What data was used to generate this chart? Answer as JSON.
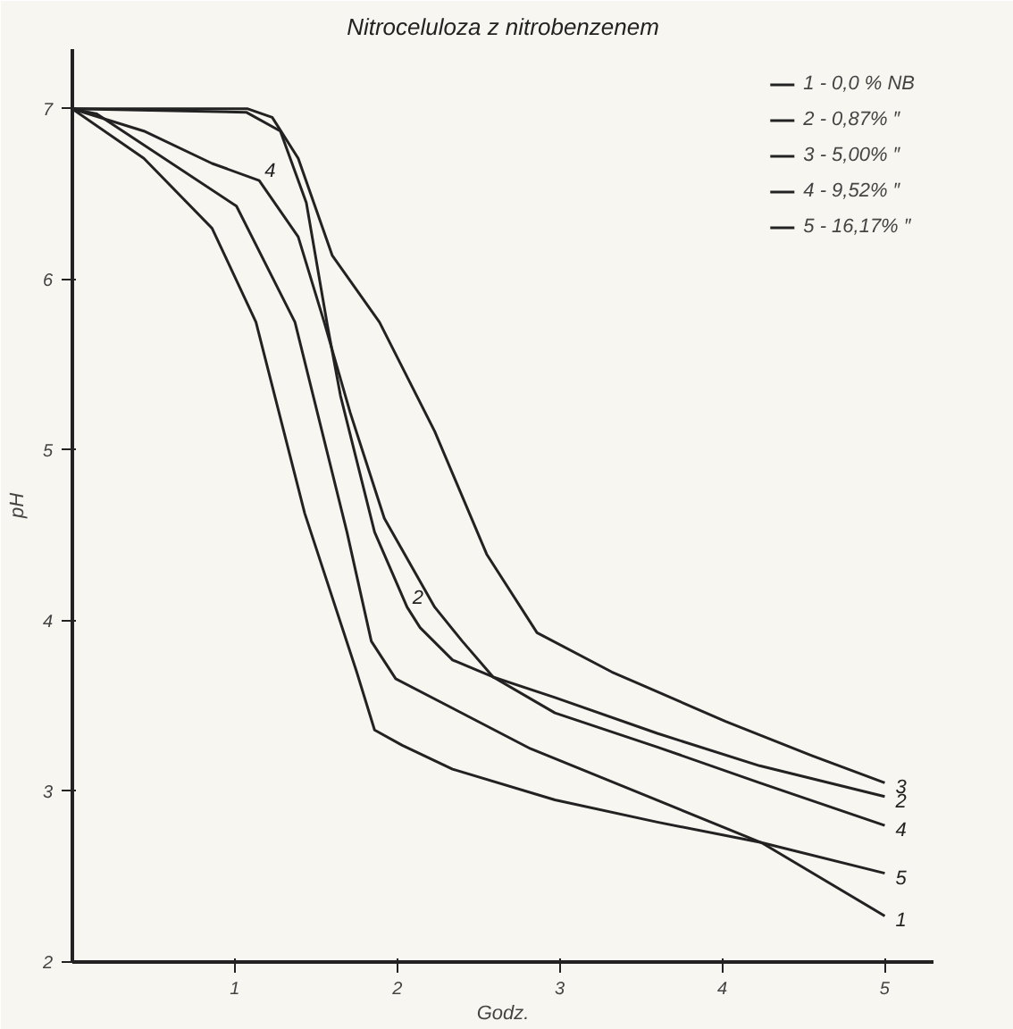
{
  "chart_data": {
    "type": "line",
    "title": "Nitroceluloza z nitrobenzenem",
    "xlabel": "Godz.",
    "ylabel": "pH",
    "xlim": [
      0,
      5.3
    ],
    "ylim": [
      2,
      7.35
    ],
    "xticks": [
      1,
      2,
      3,
      4,
      5
    ],
    "yticks": [
      2,
      3,
      4,
      5,
      6,
      7
    ],
    "grid": false,
    "legend": "top right",
    "marker": "none",
    "line_style": "solid",
    "series": [
      {
        "name": "1 - 0,0 % NB",
        "color": "#222222",
        "x": [
          0,
          0.15,
          1.01,
          1.37,
          1.69,
          1.84,
          1.99,
          2.82,
          3.57,
          4.24,
          5.0
        ],
        "values": [
          7.0,
          6.97,
          6.43,
          5.75,
          4.52,
          3.88,
          3.66,
          3.25,
          2.96,
          2.7,
          2.27
        ]
      },
      {
        "name": "2 - 0,87% ″",
        "color": "#222222",
        "x": [
          0,
          1.07,
          1.28,
          1.44,
          1.57,
          1.65,
          1.86,
          2.06,
          2.14,
          2.34,
          2.59,
          2.97,
          3.6,
          4.23,
          5.0
        ],
        "values": [
          7.0,
          6.98,
          6.87,
          6.45,
          5.73,
          5.32,
          4.52,
          4.08,
          3.96,
          3.77,
          3.67,
          3.55,
          3.34,
          3.15,
          2.97
        ]
      },
      {
        "name": "3 - 5,00% ″",
        "color": "#222222",
        "x": [
          0,
          1.08,
          1.23,
          1.39,
          1.6,
          1.89,
          2.23,
          2.55,
          2.86,
          3.32,
          4.02,
          4.55,
          5.0
        ],
        "values": [
          7.0,
          7.0,
          6.95,
          6.71,
          6.14,
          5.75,
          5.11,
          4.39,
          3.93,
          3.7,
          3.41,
          3.21,
          3.05
        ]
      },
      {
        "name": "4 - 9,52% ″",
        "color": "#222222",
        "x": [
          0,
          0.44,
          0.86,
          1.15,
          1.39,
          1.55,
          1.71,
          1.92,
          2.23,
          2.4,
          2.59,
          2.97,
          3.6,
          4.23,
          5.0
        ],
        "values": [
          7.0,
          6.87,
          6.68,
          6.58,
          6.25,
          5.75,
          5.22,
          4.6,
          4.08,
          3.88,
          3.67,
          3.46,
          3.26,
          3.05,
          2.8
        ]
      },
      {
        "name": "5 - 16,17% ″",
        "color": "#222222",
        "x": [
          0,
          0.44,
          0.86,
          1.13,
          1.43,
          1.75,
          1.86,
          2.03,
          2.34,
          2.97,
          3.6,
          4.24,
          5.0
        ],
        "values": [
          7.0,
          6.71,
          6.3,
          5.75,
          4.63,
          3.7,
          3.36,
          3.27,
          3.13,
          2.95,
          2.82,
          2.7,
          2.52
        ]
      }
    ],
    "annotations": [
      {
        "text": "1",
        "x": 5.0,
        "y": 2.27
      },
      {
        "text": "2",
        "x": 5.0,
        "y": 2.97
      },
      {
        "text": "3",
        "x": 5.0,
        "y": 3.05
      },
      {
        "text": "4",
        "x": 5.0,
        "y": 2.8
      },
      {
        "text": "5",
        "x": 5.0,
        "y": 2.52
      },
      {
        "text": "4",
        "x": 1.15,
        "y": 6.58
      },
      {
        "text": "2",
        "x": 2.06,
        "y": 4.08
      }
    ]
  }
}
